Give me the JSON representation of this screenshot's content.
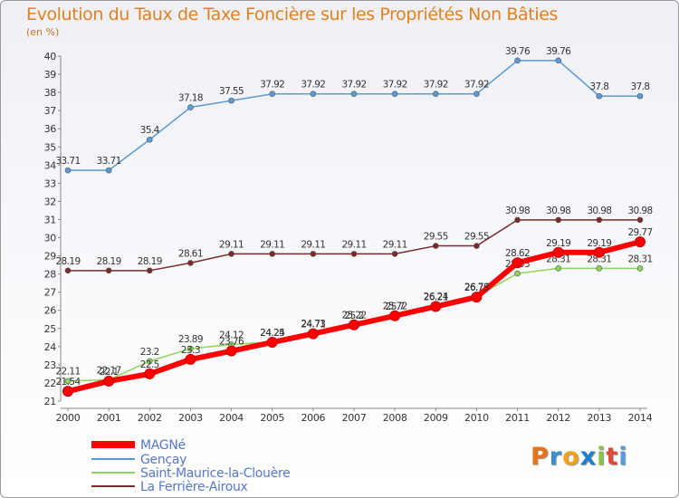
{
  "title": "Evolution du Taux de Taxe Foncière sur les Propriétés Non Bâties",
  "unit": "(en %)",
  "logo": {
    "text": "Proxiti",
    "colors": [
      "#e8731b",
      "#3a8fd2",
      "#f1a21c",
      "#1f7dc9",
      "#8bc34a",
      "#e04a3a",
      "#5a9be0"
    ]
  },
  "chart_data": {
    "type": "line",
    "x": [
      2000,
      2001,
      2002,
      2003,
      2004,
      2005,
      2006,
      2007,
      2008,
      2009,
      2010,
      2011,
      2012,
      2013,
      2014
    ],
    "ylim": [
      21,
      40
    ],
    "yticks": [
      21,
      22,
      23,
      24,
      25,
      26,
      27,
      28,
      29,
      30,
      31,
      32,
      33,
      34,
      35,
      36,
      37,
      38,
      39,
      40
    ],
    "grid": false,
    "legend_position": "bottom-left",
    "series": [
      {
        "name": "Gençay",
        "color": "#5c9bd1",
        "values": [
          33.71,
          33.71,
          35.4,
          37.18,
          37.55,
          37.92,
          37.92,
          37.92,
          37.92,
          37.92,
          37.92,
          39.76,
          39.76,
          37.8,
          37.8
        ],
        "labels": [
          "33.71",
          "33.71",
          "35.4",
          "37.18",
          "37.55",
          "37.92",
          "37.92",
          "37.92",
          "37.92",
          "37.92",
          "37.92",
          "39.76",
          "39.76",
          "37.8",
          "37.8"
        ]
      },
      {
        "name": "La Ferrière-Airoux",
        "color": "#7a2a2a",
        "values": [
          28.19,
          28.19,
          28.19,
          28.61,
          29.11,
          29.11,
          29.11,
          29.11,
          29.11,
          29.55,
          29.55,
          30.98,
          30.98,
          30.98,
          30.98
        ],
        "labels": [
          "28.19",
          "28.19",
          "28.19",
          "28.61",
          "29.11",
          "29.11",
          "29.11",
          "29.11",
          "29.11",
          "29.55",
          "29.55",
          "30.98",
          "30.98",
          "30.98",
          "30.98"
        ]
      },
      {
        "name": "Saint-Maurice-la-Clouère",
        "color": "#8fd45a",
        "values": [
          22.11,
          22.17,
          23.2,
          23.89,
          24.12,
          24.25,
          24.73,
          25.22,
          25.72,
          26.24,
          26.76,
          28.03,
          28.31,
          28.31,
          28.31
        ],
        "labels": [
          "22.11",
          "22.17",
          "23.2",
          "23.89",
          "24.12",
          "24.25",
          "24.73",
          "25.22",
          "25.72",
          "26.24",
          "26.76",
          "28.03",
          "28.31",
          "28.31",
          "28.31"
        ]
      },
      {
        "name": "MAGNé",
        "color": "#ff0000",
        "values": [
          21.54,
          22.1,
          22.5,
          23.3,
          23.76,
          24.24,
          24.71,
          25.2,
          25.7,
          26.21,
          26.73,
          28.62,
          29.19,
          29.19,
          29.77
        ],
        "labels": [
          "21.54",
          "22.1",
          "22.5",
          "23.3",
          "23.76",
          "24.24",
          "24.71",
          "25.2",
          "25.7",
          "26.21",
          "26.73",
          "28.62",
          "29.19",
          "29.19",
          "29.77"
        ]
      }
    ],
    "legend": [
      "MAGNé",
      "Gençay",
      "Saint-Maurice-la-Clouère",
      "La Ferrière-Airoux"
    ]
  }
}
